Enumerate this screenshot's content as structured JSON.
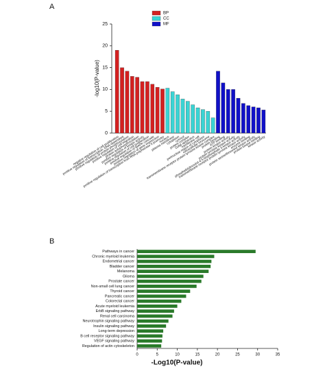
{
  "chart_data": [
    {
      "type": "bar",
      "orientation": "vertical",
      "panel_label": "A",
      "y_label": "-log10(P-value)",
      "legend": "top",
      "categories": [
        "negative regulation of cell proliferation",
        "positive regulation of transcription, DNA-dependent",
        "positive regulation of protein phosphorylation",
        "positive regulation of cell migration",
        "protein autophosphorylation",
        "positive regulation of kinase activity",
        "positive regulation of cell proliferation",
        "positive regulation of MAPK cascade",
        "positive regulation of gene expression",
        "positive regulation of transcription from RNA polymerase II promoter",
        "nucleus",
        "plasma membrane",
        "cytoplasm",
        "cytosol",
        "protein complex",
        "Golgi apparatus",
        "membrane raft",
        "perinuclear region of cytoplasm",
        "extracellular exosome",
        "transmembrane receptor protein tyrosine kinase complex",
        "protein binding",
        "ATP binding",
        "protein kinase activity",
        "protein tyrosine kinase activity",
        "phosphatidylinositol-4,5-bisphosphate 3-kinase activity",
        "transmembrane receptor protein tyrosine kinase activity",
        "enzyme binding",
        "protein serine/threonine kinase activity",
        "protein kinase binding",
        "kinase activity"
      ],
      "series": [
        {
          "name": "BP",
          "color": "#d42020",
          "values": [
            19,
            15,
            14.2,
            13,
            12.8,
            11.8,
            11.8,
            11.2,
            10.5,
            10.1,
            null,
            null,
            null,
            null,
            null,
            null,
            null,
            null,
            null,
            null,
            null,
            null,
            null,
            null,
            null,
            null,
            null,
            null,
            null,
            null
          ]
        },
        {
          "name": "CC",
          "color": "#3ad4d4",
          "values": [
            null,
            null,
            null,
            null,
            null,
            null,
            null,
            null,
            null,
            null,
            10.3,
            9.5,
            8.8,
            7.8,
            7.3,
            6.5,
            5.8,
            5.4,
            5,
            3.5,
            null,
            null,
            null,
            null,
            null,
            null,
            null,
            null,
            null,
            null
          ]
        },
        {
          "name": "MF",
          "color": "#1010c8",
          "values": [
            null,
            null,
            null,
            null,
            null,
            null,
            null,
            null,
            null,
            null,
            null,
            null,
            null,
            null,
            null,
            null,
            null,
            null,
            null,
            null,
            14.2,
            11.5,
            10,
            10,
            8,
            6.8,
            6.3,
            6,
            5.8,
            5.3
          ]
        }
      ],
      "ylim": [
        0,
        25
      ],
      "yticks": [
        0,
        5,
        10,
        15,
        20,
        25
      ]
    },
    {
      "type": "bar",
      "orientation": "horizontal",
      "panel_label": "B",
      "x_label": "-Log10(P-value)",
      "categories": [
        "Pathways in cancer",
        "Chronic myeloid leukemia",
        "Endometrial cancer",
        "Bladder cancer",
        "Melanoma",
        "Glioma",
        "Prostate cancer",
        "Non-small cell lung cancer",
        "Thyroid cancer",
        "Pancreatic cancer",
        "Colorectal cancer",
        "Acute myeloid leukemia",
        "ErbB signaling pathway",
        "Renal cell carcinoma",
        "Neurotrophin signaling pathway",
        "Insulin signaling pathway",
        "Long-term depression",
        "B cell receptor signaling pathway",
        "VEGF signaling pathway",
        "Regulation of actin cytoskeleton"
      ],
      "values": [
        29.5,
        19.2,
        18.5,
        18.3,
        17.8,
        16.5,
        16,
        14.8,
        13.2,
        12.2,
        11,
        10,
        9.2,
        8.8,
        7.8,
        7.2,
        6.5,
        6.3,
        6.2,
        6
      ],
      "color": "#2a7a2a",
      "xlim": [
        0,
        35
      ],
      "xticks": [
        0,
        5,
        10,
        15,
        20,
        25,
        30,
        35
      ]
    }
  ]
}
